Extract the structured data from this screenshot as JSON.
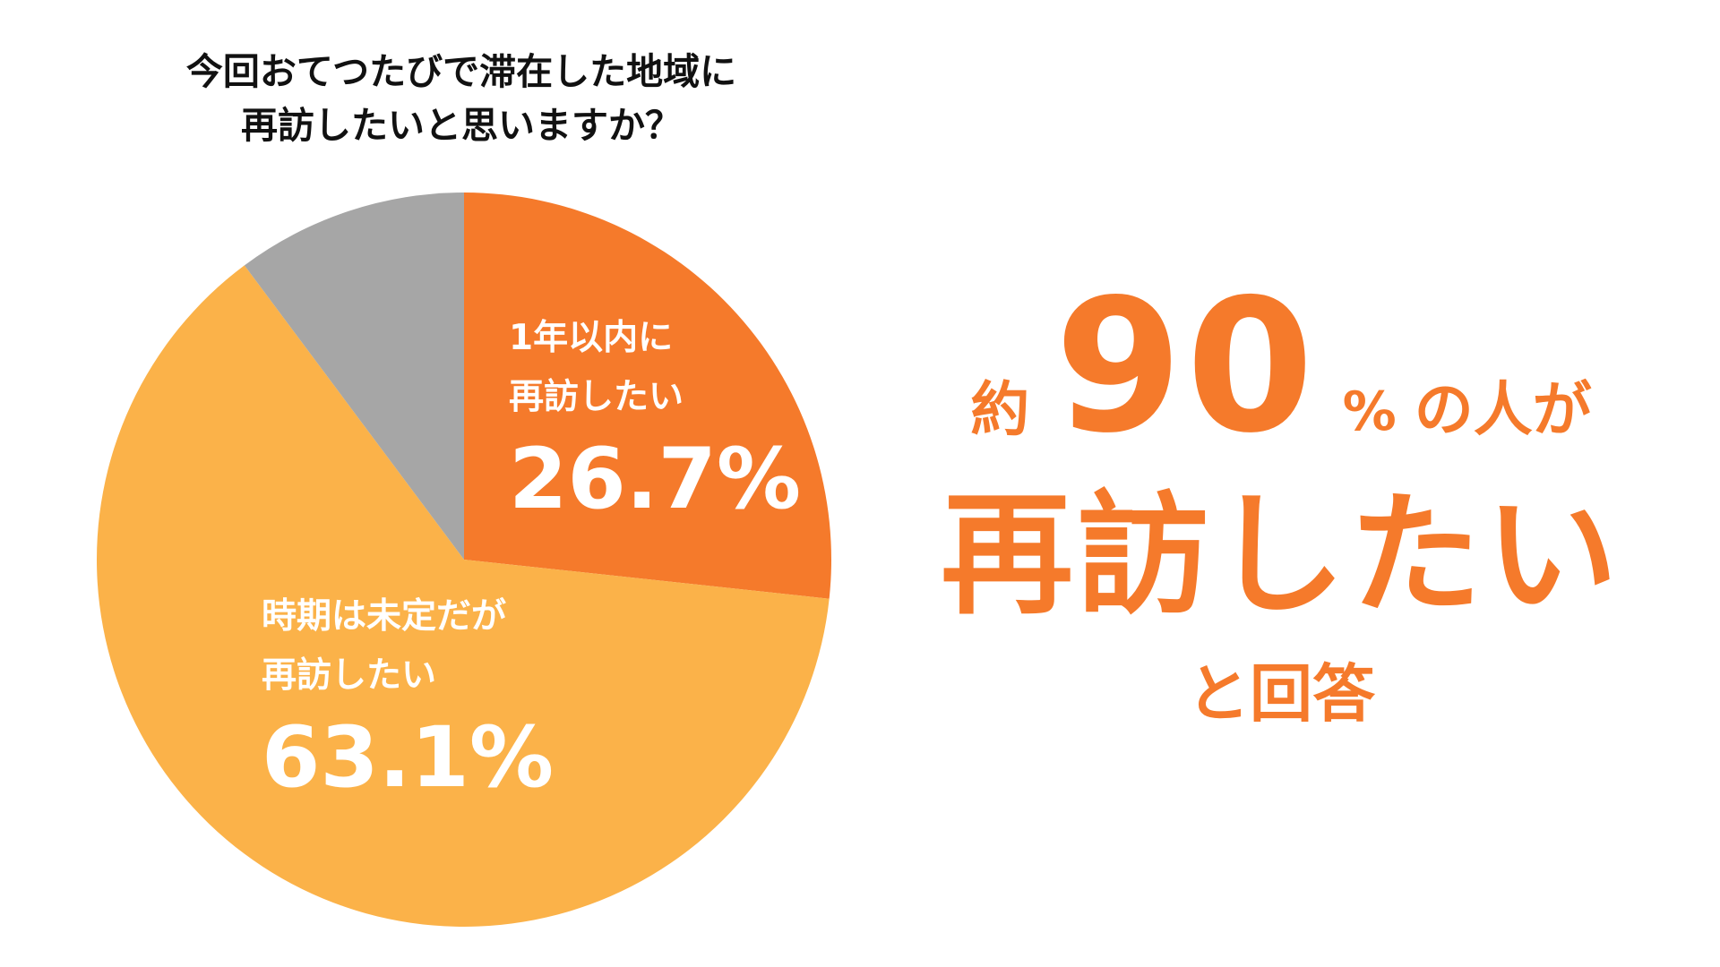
{
  "question": {
    "line1": "今回おてつたびで滞在した地域に",
    "line2": "再訪したいと思いますか？"
  },
  "chart_data": {
    "type": "pie",
    "start_angle": "12 o'clock",
    "direction": "clockwise",
    "slices": [
      {
        "line1": "1年以内に",
        "line2": "再訪したい",
        "value": 26.7,
        "value_label": "26.7%",
        "color": "#F57A2B"
      },
      {
        "line1": "時期は未定だが",
        "line2": "再訪したい",
        "value": 63.1,
        "value_label": "63.1%",
        "color": "#FBB249"
      },
      {
        "value": 10.2,
        "color": "#A6A6A6"
      }
    ]
  },
  "headline": {
    "prefix": "約",
    "number": "90",
    "percent": "%",
    "suffix": "の人が",
    "main": "再訪したい",
    "trailer": "と回答",
    "color": "#F57A2B"
  }
}
